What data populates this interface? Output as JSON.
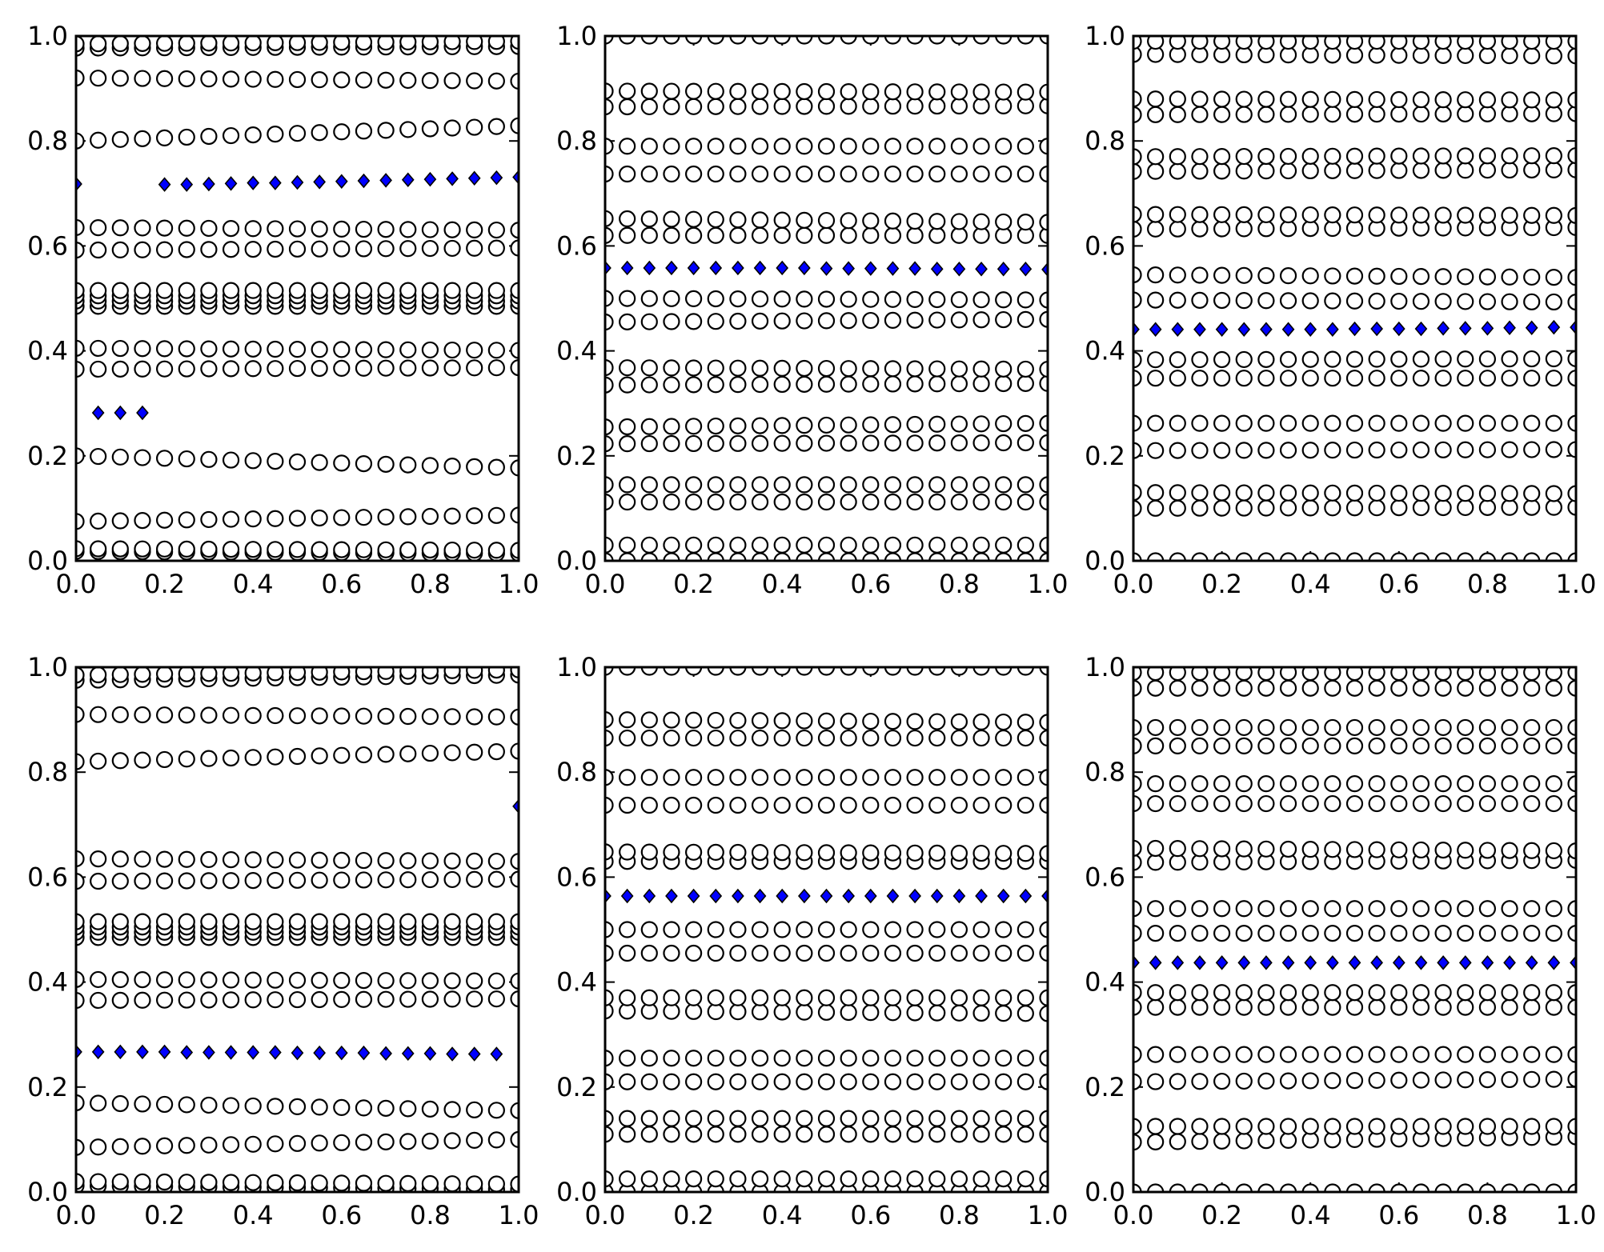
{
  "chart_data": [
    {
      "type": "scatter",
      "x": [
        0,
        0.05,
        0.1,
        0.15,
        0.2,
        0.25,
        0.3,
        0.35,
        0.4,
        0.45,
        0.5,
        0.55,
        0.6,
        0.65,
        0.7,
        0.75,
        0.8,
        0.85,
        0.9,
        0.95,
        1.0
      ],
      "xlim": [
        0,
        1
      ],
      "ylim": [
        0,
        1
      ],
      "xticks": [
        "0.0",
        "0.2",
        "0.4",
        "0.6",
        "0.8",
        "1.0"
      ],
      "yticks": [
        "0.0",
        "0.2",
        "0.4",
        "0.6",
        "0.8",
        "1.0"
      ],
      "grid": false,
      "circle_rows": [
        [
          0.018,
          0.014
        ],
        [
          0.023,
          0.02
        ],
        [
          0.075,
          0.087
        ],
        [
          0.2,
          0.177
        ],
        [
          0.365,
          0.368
        ],
        [
          0.405,
          0.401
        ],
        [
          0.485,
          0.485
        ],
        [
          0.495,
          0.495
        ],
        [
          0.505,
          0.505
        ],
        [
          0.515,
          0.515
        ],
        [
          0.592,
          0.596
        ],
        [
          0.635,
          0.63
        ],
        [
          0.8,
          0.829
        ],
        [
          0.92,
          0.914
        ],
        [
          0.977,
          0.98
        ],
        [
          0.985,
          0.99
        ]
      ],
      "diamonds": [
        {
          "x": 0.0,
          "y": 0.718
        },
        {
          "x": 0.05,
          "y": 0.282
        },
        {
          "x": 0.1,
          "y": 0.282
        },
        {
          "x": 0.15,
          "y": 0.282
        },
        {
          "x": 0.2,
          "y": 0.717
        },
        {
          "x": 0.25,
          "y": 0.717
        },
        {
          "x": 0.3,
          "y": 0.718
        },
        {
          "x": 0.35,
          "y": 0.719
        },
        {
          "x": 0.4,
          "y": 0.72
        },
        {
          "x": 0.45,
          "y": 0.72
        },
        {
          "x": 0.5,
          "y": 0.721
        },
        {
          "x": 0.55,
          "y": 0.722
        },
        {
          "x": 0.6,
          "y": 0.723
        },
        {
          "x": 0.65,
          "y": 0.724
        },
        {
          "x": 0.7,
          "y": 0.725
        },
        {
          "x": 0.75,
          "y": 0.726
        },
        {
          "x": 0.8,
          "y": 0.727
        },
        {
          "x": 0.85,
          "y": 0.728
        },
        {
          "x": 0.9,
          "y": 0.729
        },
        {
          "x": 0.95,
          "y": 0.73
        },
        {
          "x": 1.0,
          "y": 0.731
        }
      ]
    },
    {
      "type": "scatter",
      "x": [
        0,
        0.05,
        0.1,
        0.15,
        0.2,
        0.25,
        0.3,
        0.35,
        0.4,
        0.45,
        0.5,
        0.55,
        0.6,
        0.65,
        0.7,
        0.75,
        0.8,
        0.85,
        0.9,
        0.95,
        1.0
      ],
      "xlim": [
        0,
        1
      ],
      "ylim": [
        0,
        1
      ],
      "xticks": [
        "0.0",
        "0.2",
        "0.4",
        "0.6",
        "0.8",
        "1.0"
      ],
      "yticks": [
        "0.0",
        "0.2",
        "0.4",
        "0.6",
        "0.8",
        "1.0"
      ],
      "grid": false,
      "circle_rows": [
        [
          0.0,
          0.0
        ],
        [
          0.03,
          0.03
        ],
        [
          0.112,
          0.112
        ],
        [
          0.145,
          0.145
        ],
        [
          0.223,
          0.225
        ],
        [
          0.255,
          0.262
        ],
        [
          0.335,
          0.338
        ],
        [
          0.368,
          0.365
        ],
        [
          0.455,
          0.46
        ],
        [
          0.5,
          0.497
        ],
        [
          0.62,
          0.62
        ],
        [
          0.652,
          0.645
        ],
        [
          0.737,
          0.737
        ],
        [
          0.79,
          0.79
        ],
        [
          0.865,
          0.867
        ],
        [
          0.895,
          0.893
        ],
        [
          1.0,
          1.0
        ]
      ],
      "diamonds": [
        {
          "x": 0.0,
          "y": 0.558
        },
        {
          "x": 0.05,
          "y": 0.558
        },
        {
          "x": 0.1,
          "y": 0.558
        },
        {
          "x": 0.15,
          "y": 0.558
        },
        {
          "x": 0.2,
          "y": 0.558
        },
        {
          "x": 0.25,
          "y": 0.558
        },
        {
          "x": 0.3,
          "y": 0.558
        },
        {
          "x": 0.35,
          "y": 0.558
        },
        {
          "x": 0.4,
          "y": 0.558
        },
        {
          "x": 0.45,
          "y": 0.558
        },
        {
          "x": 0.5,
          "y": 0.557
        },
        {
          "x": 0.55,
          "y": 0.557
        },
        {
          "x": 0.6,
          "y": 0.557
        },
        {
          "x": 0.65,
          "y": 0.557
        },
        {
          "x": 0.7,
          "y": 0.557
        },
        {
          "x": 0.75,
          "y": 0.556
        },
        {
          "x": 0.8,
          "y": 0.556
        },
        {
          "x": 0.85,
          "y": 0.556
        },
        {
          "x": 0.9,
          "y": 0.556
        },
        {
          "x": 0.95,
          "y": 0.556
        },
        {
          "x": 1.0,
          "y": 0.555
        }
      ]
    },
    {
      "type": "scatter",
      "x": [
        0,
        0.05,
        0.1,
        0.15,
        0.2,
        0.25,
        0.3,
        0.35,
        0.4,
        0.45,
        0.5,
        0.55,
        0.6,
        0.65,
        0.7,
        0.75,
        0.8,
        0.85,
        0.9,
        0.95,
        1.0
      ],
      "xlim": [
        0,
        1
      ],
      "ylim": [
        0,
        1
      ],
      "xticks": [
        "0.0",
        "0.2",
        "0.4",
        "0.6",
        "0.8",
        "1.0"
      ],
      "yticks": [
        "0.0",
        "0.2",
        "0.4",
        "0.6",
        "0.8",
        "1.0"
      ],
      "grid": false,
      "circle_rows": [
        [
          0.0,
          0.0
        ],
        [
          0.1,
          0.102
        ],
        [
          0.13,
          0.128
        ],
        [
          0.21,
          0.212
        ],
        [
          0.262,
          0.262
        ],
        [
          0.348,
          0.348
        ],
        [
          0.383,
          0.385
        ],
        [
          0.497,
          0.493
        ],
        [
          0.545,
          0.54
        ],
        [
          0.632,
          0.635
        ],
        [
          0.66,
          0.658
        ],
        [
          0.742,
          0.745
        ],
        [
          0.77,
          0.772
        ],
        [
          0.85,
          0.852
        ],
        [
          0.88,
          0.878
        ],
        [
          0.965,
          0.962
        ],
        [
          0.99,
          0.99
        ]
      ],
      "diamonds": [
        {
          "x": 0.0,
          "y": 0.441
        },
        {
          "x": 0.05,
          "y": 0.441
        },
        {
          "x": 0.1,
          "y": 0.441
        },
        {
          "x": 0.15,
          "y": 0.441
        },
        {
          "x": 0.2,
          "y": 0.441
        },
        {
          "x": 0.25,
          "y": 0.441
        },
        {
          "x": 0.3,
          "y": 0.441
        },
        {
          "x": 0.35,
          "y": 0.441
        },
        {
          "x": 0.4,
          "y": 0.441
        },
        {
          "x": 0.45,
          "y": 0.441
        },
        {
          "x": 0.5,
          "y": 0.442
        },
        {
          "x": 0.55,
          "y": 0.442
        },
        {
          "x": 0.6,
          "y": 0.442
        },
        {
          "x": 0.65,
          "y": 0.442
        },
        {
          "x": 0.7,
          "y": 0.443
        },
        {
          "x": 0.75,
          "y": 0.443
        },
        {
          "x": 0.8,
          "y": 0.443
        },
        {
          "x": 0.85,
          "y": 0.444
        },
        {
          "x": 0.9,
          "y": 0.444
        },
        {
          "x": 0.95,
          "y": 0.445
        },
        {
          "x": 1.0,
          "y": 0.445
        }
      ]
    },
    {
      "type": "scatter",
      "x": [
        0,
        0.05,
        0.1,
        0.15,
        0.2,
        0.25,
        0.3,
        0.35,
        0.4,
        0.45,
        0.5,
        0.55,
        0.6,
        0.65,
        0.7,
        0.75,
        0.8,
        0.85,
        0.9,
        0.95,
        1.0
      ],
      "xlim": [
        0,
        1
      ],
      "ylim": [
        0,
        1
      ],
      "xticks": [
        "0.0",
        "0.2",
        "0.4",
        "0.6",
        "0.8",
        "1.0"
      ],
      "yticks": [
        "0.0",
        "0.2",
        "0.4",
        "0.6",
        "0.8",
        "1.0"
      ],
      "grid": false,
      "circle_rows": [
        [
          0.012,
          0.005
        ],
        [
          0.02,
          0.015
        ],
        [
          0.085,
          0.1
        ],
        [
          0.17,
          0.155
        ],
        [
          0.365,
          0.368
        ],
        [
          0.405,
          0.402
        ],
        [
          0.485,
          0.485
        ],
        [
          0.495,
          0.495
        ],
        [
          0.505,
          0.505
        ],
        [
          0.515,
          0.515
        ],
        [
          0.592,
          0.596
        ],
        [
          0.635,
          0.63
        ],
        [
          0.82,
          0.84
        ],
        [
          0.91,
          0.905
        ],
        [
          0.975,
          0.985
        ],
        [
          0.985,
          0.995
        ]
      ],
      "diamonds": [
        {
          "x": 0.0,
          "y": 0.267
        },
        {
          "x": 0.05,
          "y": 0.267
        },
        {
          "x": 0.1,
          "y": 0.267
        },
        {
          "x": 0.15,
          "y": 0.267
        },
        {
          "x": 0.2,
          "y": 0.267
        },
        {
          "x": 0.25,
          "y": 0.266
        },
        {
          "x": 0.3,
          "y": 0.266
        },
        {
          "x": 0.35,
          "y": 0.266
        },
        {
          "x": 0.4,
          "y": 0.266
        },
        {
          "x": 0.45,
          "y": 0.266
        },
        {
          "x": 0.5,
          "y": 0.265
        },
        {
          "x": 0.55,
          "y": 0.265
        },
        {
          "x": 0.6,
          "y": 0.265
        },
        {
          "x": 0.65,
          "y": 0.265
        },
        {
          "x": 0.7,
          "y": 0.264
        },
        {
          "x": 0.75,
          "y": 0.264
        },
        {
          "x": 0.8,
          "y": 0.264
        },
        {
          "x": 0.85,
          "y": 0.263
        },
        {
          "x": 0.9,
          "y": 0.263
        },
        {
          "x": 0.95,
          "y": 0.263
        },
        {
          "x": 1.0,
          "y": 0.735
        }
      ]
    },
    {
      "type": "scatter",
      "x": [
        0,
        0.05,
        0.1,
        0.15,
        0.2,
        0.25,
        0.3,
        0.35,
        0.4,
        0.45,
        0.5,
        0.55,
        0.6,
        0.65,
        0.7,
        0.75,
        0.8,
        0.85,
        0.9,
        0.95,
        1.0
      ],
      "xlim": [
        0,
        1
      ],
      "ylim": [
        0,
        1
      ],
      "xticks": [
        "0.0",
        "0.2",
        "0.4",
        "0.6",
        "0.8",
        "1.0"
      ],
      "yticks": [
        "0.0",
        "0.2",
        "0.4",
        "0.6",
        "0.8",
        "1.0"
      ],
      "grid": false,
      "circle_rows": [
        [
          0.0,
          0.0
        ],
        [
          0.025,
          0.025
        ],
        [
          0.11,
          0.11
        ],
        [
          0.14,
          0.14
        ],
        [
          0.21,
          0.21
        ],
        [
          0.255,
          0.255
        ],
        [
          0.345,
          0.34
        ],
        [
          0.37,
          0.37
        ],
        [
          0.455,
          0.455
        ],
        [
          0.5,
          0.5
        ],
        [
          0.63,
          0.63
        ],
        [
          0.648,
          0.645
        ],
        [
          0.737,
          0.737
        ],
        [
          0.79,
          0.79
        ],
        [
          0.865,
          0.865
        ],
        [
          0.9,
          0.895
        ],
        [
          1.0,
          1.0
        ]
      ],
      "diamonds": [
        {
          "x": 0.0,
          "y": 0.564
        },
        {
          "x": 0.05,
          "y": 0.564
        },
        {
          "x": 0.1,
          "y": 0.564
        },
        {
          "x": 0.15,
          "y": 0.564
        },
        {
          "x": 0.2,
          "y": 0.564
        },
        {
          "x": 0.25,
          "y": 0.564
        },
        {
          "x": 0.3,
          "y": 0.564
        },
        {
          "x": 0.35,
          "y": 0.564
        },
        {
          "x": 0.4,
          "y": 0.564
        },
        {
          "x": 0.45,
          "y": 0.564
        },
        {
          "x": 0.5,
          "y": 0.564
        },
        {
          "x": 0.55,
          "y": 0.564
        },
        {
          "x": 0.6,
          "y": 0.564
        },
        {
          "x": 0.65,
          "y": 0.564
        },
        {
          "x": 0.7,
          "y": 0.564
        },
        {
          "x": 0.75,
          "y": 0.564
        },
        {
          "x": 0.8,
          "y": 0.564
        },
        {
          "x": 0.85,
          "y": 0.564
        },
        {
          "x": 0.9,
          "y": 0.564
        },
        {
          "x": 0.95,
          "y": 0.564
        },
        {
          "x": 1.0,
          "y": 0.564
        }
      ]
    },
    {
      "type": "scatter",
      "x": [
        0,
        0.05,
        0.1,
        0.15,
        0.2,
        0.25,
        0.3,
        0.35,
        0.4,
        0.45,
        0.5,
        0.55,
        0.6,
        0.65,
        0.7,
        0.75,
        0.8,
        0.85,
        0.9,
        0.95,
        1.0
      ],
      "xlim": [
        0,
        1
      ],
      "ylim": [
        0,
        1
      ],
      "xticks": [
        "0.0",
        "0.2",
        "0.4",
        "0.6",
        "0.8",
        "1.0"
      ],
      "yticks": [
        "0.0",
        "0.2",
        "0.4",
        "0.6",
        "0.8",
        "1.0"
      ],
      "grid": false,
      "circle_rows": [
        [
          0.0,
          0.0
        ],
        [
          0.095,
          0.105
        ],
        [
          0.125,
          0.125
        ],
        [
          0.21,
          0.215
        ],
        [
          0.262,
          0.262
        ],
        [
          0.352,
          0.352
        ],
        [
          0.38,
          0.38
        ],
        [
          0.493,
          0.493
        ],
        [
          0.54,
          0.54
        ],
        [
          0.628,
          0.632
        ],
        [
          0.655,
          0.65
        ],
        [
          0.74,
          0.74
        ],
        [
          0.778,
          0.778
        ],
        [
          0.85,
          0.85
        ],
        [
          0.885,
          0.885
        ],
        [
          0.96,
          0.96
        ],
        [
          0.99,
          0.99
        ]
      ],
      "diamonds": [
        {
          "x": 0.0,
          "y": 0.437
        },
        {
          "x": 0.05,
          "y": 0.437
        },
        {
          "x": 0.1,
          "y": 0.437
        },
        {
          "x": 0.15,
          "y": 0.437
        },
        {
          "x": 0.2,
          "y": 0.437
        },
        {
          "x": 0.25,
          "y": 0.437
        },
        {
          "x": 0.3,
          "y": 0.437
        },
        {
          "x": 0.35,
          "y": 0.437
        },
        {
          "x": 0.4,
          "y": 0.437
        },
        {
          "x": 0.45,
          "y": 0.437
        },
        {
          "x": 0.5,
          "y": 0.437
        },
        {
          "x": 0.55,
          "y": 0.437
        },
        {
          "x": 0.6,
          "y": 0.437
        },
        {
          "x": 0.65,
          "y": 0.437
        },
        {
          "x": 0.7,
          "y": 0.437
        },
        {
          "x": 0.75,
          "y": 0.437
        },
        {
          "x": 0.8,
          "y": 0.437
        },
        {
          "x": 0.85,
          "y": 0.437
        },
        {
          "x": 0.9,
          "y": 0.437
        },
        {
          "x": 0.95,
          "y": 0.437
        },
        {
          "x": 1.0,
          "y": 0.437
        }
      ]
    }
  ],
  "colors": {
    "diamond_fill": "#0000ff",
    "circle_fill": "#ffffff",
    "stroke": "#000000"
  }
}
